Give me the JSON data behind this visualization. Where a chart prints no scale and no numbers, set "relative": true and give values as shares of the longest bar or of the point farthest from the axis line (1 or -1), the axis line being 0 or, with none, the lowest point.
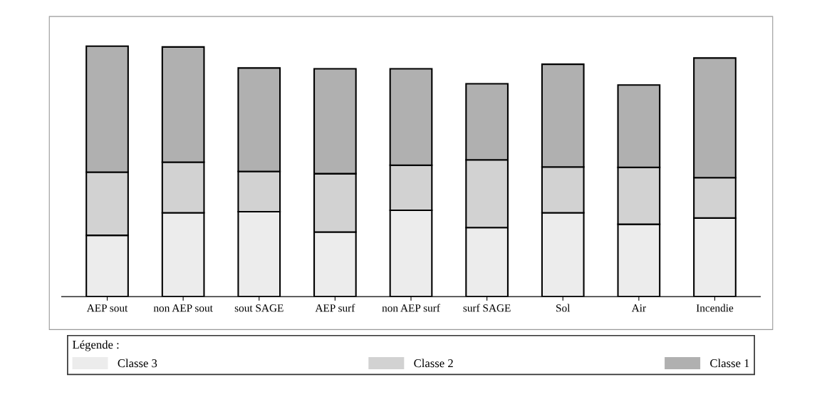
{
  "chart_data": {
    "type": "bar",
    "stacked": true,
    "relative": true,
    "categories": [
      "AEP sout",
      "non AEP sout",
      "sout SAGE",
      "AEP surf",
      "non AEP surf",
      "surf SAGE",
      "Sol",
      "Air",
      "Incendie"
    ],
    "series": [
      {
        "name": "Classe 3",
        "color": "#ececec",
        "values": [
          0.245,
          0.335,
          0.339,
          0.258,
          0.345,
          0.276,
          0.335,
          0.289,
          0.314
        ]
      },
      {
        "name": "Classe 2",
        "color": "#d2d2d2",
        "values": [
          0.252,
          0.202,
          0.161,
          0.233,
          0.18,
          0.27,
          0.183,
          0.227,
          0.161
        ]
      },
      {
        "name": "Classe 1",
        "color": "#b0b0b0",
        "values": [
          0.503,
          0.46,
          0.413,
          0.419,
          0.385,
          0.304,
          0.41,
          0.329,
          0.478
        ]
      }
    ],
    "legend": "bottom",
    "legend_title": "Légende :",
    "grid": false
  }
}
